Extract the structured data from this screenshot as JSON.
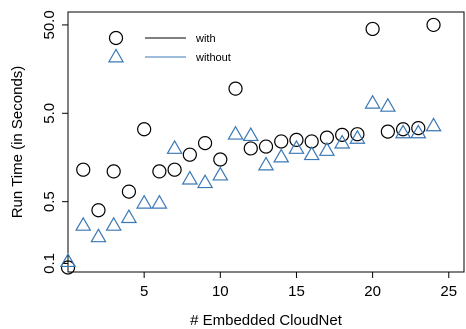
{
  "chart_data": {
    "type": "scatter",
    "title": "",
    "xlabel": "# Embedded CloudNet",
    "ylabel": "Run Time (in Seconds)",
    "xlim": [
      0,
      26
    ],
    "ylim": [
      0.08,
      70
    ],
    "y_scale": "log",
    "x_ticks": [
      5,
      10,
      15,
      20,
      25
    ],
    "x_tick_labels": [
      "5",
      "10",
      "15",
      "20",
      "25"
    ],
    "y_ticks": [
      0.1,
      0.5,
      5.0,
      50.0
    ],
    "y_tick_labels": [
      "0.1",
      "0.5",
      "5.0",
      "50.0"
    ],
    "grid": false,
    "legend_position": "top-left",
    "series": [
      {
        "name": "with",
        "marker": "circle",
        "color": "#000000",
        "points": [
          [
            0,
            0.09
          ],
          [
            1,
            1.15
          ],
          [
            2,
            0.4
          ],
          [
            3,
            1.1
          ],
          [
            4,
            0.65
          ],
          [
            5,
            3.3
          ],
          [
            6,
            1.1
          ],
          [
            7,
            1.15
          ],
          [
            8,
            1.7
          ],
          [
            9,
            2.3
          ],
          [
            10,
            1.5
          ],
          [
            11,
            9.5
          ],
          [
            12,
            2.0
          ],
          [
            13,
            2.1
          ],
          [
            14,
            2.4
          ],
          [
            15,
            2.5
          ],
          [
            16,
            2.4
          ],
          [
            17,
            2.65
          ],
          [
            18,
            2.85
          ],
          [
            19,
            2.9
          ],
          [
            20,
            45
          ],
          [
            21,
            3.1
          ],
          [
            22,
            3.3
          ],
          [
            23,
            3.4
          ],
          [
            24,
            50
          ]
        ]
      },
      {
        "name": "without",
        "marker": "triangle",
        "color": "#3a78b5",
        "points": [
          [
            0,
            0.105
          ],
          [
            1,
            0.27
          ],
          [
            2,
            0.2
          ],
          [
            3,
            0.27
          ],
          [
            4,
            0.33
          ],
          [
            5,
            0.48
          ],
          [
            6,
            0.48
          ],
          [
            7,
            2.0
          ],
          [
            8,
            0.9
          ],
          [
            9,
            0.82
          ],
          [
            10,
            1.0
          ],
          [
            11,
            2.9
          ],
          [
            12,
            2.8
          ],
          [
            13,
            1.3
          ],
          [
            14,
            1.6
          ],
          [
            15,
            2.0
          ],
          [
            16,
            1.7
          ],
          [
            17,
            1.9
          ],
          [
            18,
            2.3
          ],
          [
            19,
            2.6
          ],
          [
            20,
            6.5
          ],
          [
            21,
            6.0
          ],
          [
            22,
            3.0
          ],
          [
            23,
            3.0
          ],
          [
            24,
            3.6
          ]
        ]
      }
    ]
  }
}
